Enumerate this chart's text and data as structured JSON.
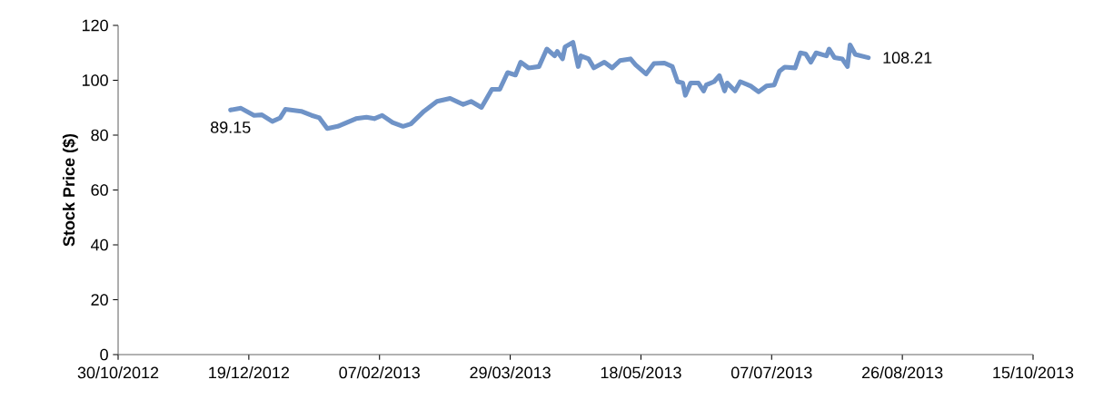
{
  "chart_data": {
    "type": "line",
    "ylabel": "Stock Price ($)",
    "x": [
      "2012-12-12",
      "2012-12-16",
      "2012-12-21",
      "2012-12-24",
      "2012-12-28",
      "2012-12-31",
      "2013-01-02",
      "2013-01-08",
      "2013-01-12",
      "2013-01-15",
      "2013-01-18",
      "2013-01-22",
      "2013-01-29",
      "2013-02-02",
      "2013-02-05",
      "2013-02-08",
      "2013-02-12",
      "2013-02-16",
      "2013-02-19",
      "2013-02-24",
      "2013-03-01",
      "2013-03-06",
      "2013-03-11",
      "2013-03-14",
      "2013-03-18",
      "2013-03-20",
      "2013-03-22",
      "2013-03-25",
      "2013-03-28",
      "2013-03-31",
      "2013-04-02",
      "2013-04-05",
      "2013-04-09",
      "2013-04-12",
      "2013-04-15",
      "2013-04-16",
      "2013-04-18",
      "2013-04-19",
      "2013-04-22",
      "2013-04-24",
      "2013-04-25",
      "2013-04-28",
      "2013-04-30",
      "2013-05-04",
      "2013-05-07",
      "2013-05-10",
      "2013-05-14",
      "2013-05-16",
      "2013-05-20",
      "2013-05-23",
      "2013-05-27",
      "2013-05-30",
      "2013-06-01",
      "2013-06-03",
      "2013-06-04",
      "2013-06-06",
      "2013-06-09",
      "2013-06-11",
      "2013-06-12",
      "2013-06-15",
      "2013-06-17",
      "2013-06-19",
      "2013-06-20",
      "2013-06-23",
      "2013-06-25",
      "2013-06-29",
      "2013-07-02",
      "2013-07-05",
      "2013-07-08",
      "2013-07-10",
      "2013-07-12",
      "2013-07-16",
      "2013-07-18",
      "2013-07-20",
      "2013-07-22",
      "2013-07-24",
      "2013-07-28",
      "2013-07-29",
      "2013-07-31",
      "2013-08-03",
      "2013-08-05",
      "2013-08-06",
      "2013-08-08",
      "2013-08-13"
    ],
    "series": [
      {
        "color": "#6f93c7",
        "values": [
          89.15,
          89.8,
          87.2,
          87.4,
          85.0,
          86.3,
          89.4,
          88.7,
          87.2,
          86.3,
          82.4,
          83.2,
          86.0,
          86.5,
          86.0,
          87.2,
          84.6,
          83.2,
          84.1,
          88.7,
          92.3,
          93.4,
          91.2,
          92.3,
          90.1,
          93.4,
          96.7,
          96.7,
          102.8,
          101.9,
          106.6,
          104.5,
          105.0,
          111.4,
          108.9,
          110.5,
          107.8,
          112.2,
          113.8,
          105.0,
          108.9,
          107.8,
          104.5,
          106.6,
          104.5,
          107.2,
          107.8,
          105.6,
          102.3,
          106.1,
          106.3,
          105.0,
          99.5,
          99.0,
          94.5,
          99.0,
          99.0,
          96.1,
          98.3,
          99.5,
          101.7,
          96.1,
          99.0,
          96.1,
          99.5,
          97.9,
          95.8,
          97.9,
          98.3,
          103.3,
          104.8,
          104.5,
          110.0,
          109.6,
          106.6,
          110.0,
          108.9,
          111.4,
          108.3,
          107.8,
          105.0,
          112.9,
          109.4,
          108.21
        ]
      }
    ],
    "xlim": [
      "2012-10-30",
      "2013-10-15"
    ],
    "xticks": [
      {
        "value": "2012-10-30",
        "label": "30/10/2012"
      },
      {
        "value": "2012-12-19",
        "label": "19/12/2012"
      },
      {
        "value": "2013-02-07",
        "label": "07/02/2013"
      },
      {
        "value": "2013-03-29",
        "label": "29/03/2013"
      },
      {
        "value": "2013-05-18",
        "label": "18/05/2013"
      },
      {
        "value": "2013-07-07",
        "label": "07/07/2013"
      },
      {
        "value": "2013-08-26",
        "label": "26/08/2013"
      },
      {
        "value": "2013-10-15",
        "label": "15/10/2013"
      }
    ],
    "ylim": [
      0,
      120
    ],
    "yticks": [
      0,
      20,
      40,
      60,
      80,
      100,
      120
    ],
    "annotations": [
      {
        "text": "89.15",
        "x": "2012-12-12",
        "y": 89.15
      },
      {
        "text": "108.21",
        "x": "2013-08-13",
        "y": 108.21
      }
    ],
    "grid": false,
    "marker": "none",
    "line_style": "solid"
  }
}
